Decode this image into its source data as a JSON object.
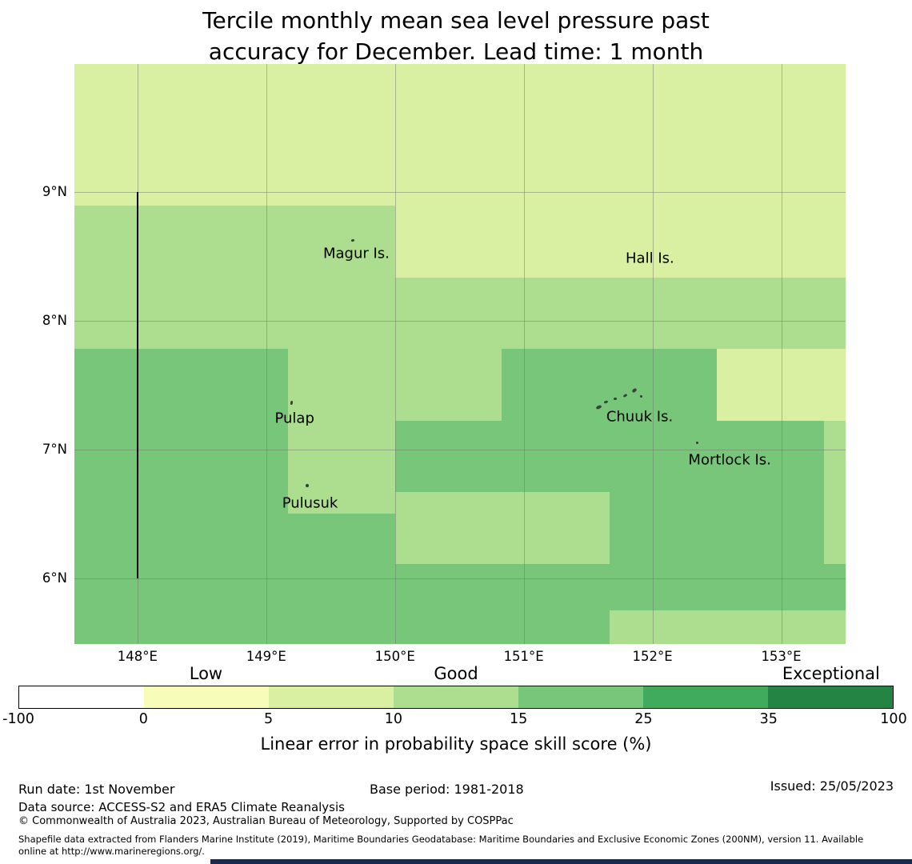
{
  "chart_data": {
    "type": "heatmap",
    "title": "Tercile monthly mean sea level pressure past\naccuracy for December. Lead time: 1 month",
    "projection": {
      "lon_min": 147.51,
      "lon_max": 153.5,
      "lat_min": 5.49,
      "lat_max": 9.99
    },
    "grid": true,
    "x_ticks": [
      {
        "value": 148,
        "label": "148°E"
      },
      {
        "value": 149,
        "label": "149°E"
      },
      {
        "value": 150,
        "label": "150°E"
      },
      {
        "value": 151,
        "label": "151°E"
      },
      {
        "value": 152,
        "label": "152°E"
      },
      {
        "value": 153,
        "label": "153°E"
      }
    ],
    "y_ticks": [
      {
        "value": 9,
        "label": "9°N"
      },
      {
        "value": 8,
        "label": "8°N"
      },
      {
        "value": 7,
        "label": "7°N"
      },
      {
        "value": 6,
        "label": "6°N"
      }
    ],
    "cells": [
      {
        "lon": [
          147.51,
          153.5
        ],
        "lat": [
          8.89,
          9.99
        ],
        "color": "#d9f0a3",
        "skill": "5-10%"
      },
      {
        "lon": [
          147.51,
          150.0
        ],
        "lat": [
          7.78,
          8.89
        ],
        "color": "#addd8e",
        "skill": "10-15%"
      },
      {
        "lon": [
          150.0,
          153.5
        ],
        "lat": [
          8.33,
          8.89
        ],
        "color": "#d9f0a3",
        "skill": "5-10%"
      },
      {
        "lon": [
          150.0,
          153.5
        ],
        "lat": [
          7.78,
          8.33
        ],
        "color": "#addd8e",
        "skill": "10-15%"
      },
      {
        "lon": [
          147.51,
          149.17
        ],
        "lat": [
          5.49,
          7.78
        ],
        "color": "#78c679",
        "skill": "15-25%"
      },
      {
        "lon": [
          149.17,
          150.0
        ],
        "lat": [
          6.5,
          7.78
        ],
        "color": "#addd8e",
        "skill": "10-15%"
      },
      {
        "lon": [
          149.17,
          150.0
        ],
        "lat": [
          5.49,
          6.5
        ],
        "color": "#78c679",
        "skill": "15-25%"
      },
      {
        "lon": [
          150.0,
          150.83
        ],
        "lat": [
          7.22,
          7.78
        ],
        "color": "#addd8e",
        "skill": "10-15%"
      },
      {
        "lon": [
          150.83,
          152.5
        ],
        "lat": [
          7.22,
          7.78
        ],
        "color": "#78c679",
        "skill": "15-25%"
      },
      {
        "lon": [
          152.5,
          153.5
        ],
        "lat": [
          7.22,
          7.78
        ],
        "color": "#d9f0a3",
        "skill": "5-10%"
      },
      {
        "lon": [
          150.0,
          153.33
        ],
        "lat": [
          6.67,
          7.22
        ],
        "color": "#78c679",
        "skill": "15-25%"
      },
      {
        "lon": [
          153.33,
          153.5
        ],
        "lat": [
          6.11,
          7.22
        ],
        "color": "#addd8e",
        "skill": "10-15%"
      },
      {
        "lon": [
          150.0,
          151.67
        ],
        "lat": [
          6.11,
          6.67
        ],
        "color": "#addd8e",
        "skill": "10-15%"
      },
      {
        "lon": [
          151.67,
          153.33
        ],
        "lat": [
          6.11,
          6.67
        ],
        "color": "#78c679",
        "skill": "15-25%"
      },
      {
        "lon": [
          150.0,
          153.5
        ],
        "lat": [
          5.49,
          6.11
        ],
        "color": "#78c679",
        "skill": "15-25%"
      },
      {
        "lon": [
          151.67,
          153.5
        ],
        "lat": [
          5.49,
          5.75
        ],
        "color": "#addd8e",
        "skill": "10-15%"
      }
    ],
    "boundary_line": {
      "lon": 148,
      "lat_from": 6,
      "lat_to": 9,
      "color": "#000000"
    },
    "islands": [
      {
        "name": "Magur Is.",
        "label_lon": 149.7,
        "label_lat": 8.52,
        "markers": [
          {
            "lon": 149.67,
            "lat": 8.62,
            "w": 4,
            "h": 3,
            "rot": -15
          }
        ]
      },
      {
        "name": "Hall Is.",
        "label_lon": 151.98,
        "label_lat": 8.48,
        "markers": []
      },
      {
        "name": "Pulap",
        "label_lon": 149.22,
        "label_lat": 7.24,
        "markers": [
          {
            "lon": 149.2,
            "lat": 7.36,
            "w": 3,
            "h": 5,
            "rot": 10
          }
        ]
      },
      {
        "name": "Chuuk Is.",
        "label_lon": 151.9,
        "label_lat": 7.25,
        "markers": [
          {
            "lon": 151.58,
            "lat": 7.33,
            "w": 7,
            "h": 4,
            "rot": -25
          },
          {
            "lon": 151.64,
            "lat": 7.37,
            "w": 5,
            "h": 3,
            "rot": -20
          },
          {
            "lon": 151.71,
            "lat": 7.39,
            "w": 4,
            "h": 3,
            "rot": 0
          },
          {
            "lon": 151.79,
            "lat": 7.42,
            "w": 5,
            "h": 3,
            "rot": -30
          },
          {
            "lon": 151.86,
            "lat": 7.46,
            "w": 6,
            "h": 4,
            "rot": -40
          },
          {
            "lon": 151.91,
            "lat": 7.41,
            "w": 3,
            "h": 3,
            "rot": 0
          }
        ]
      },
      {
        "name": "Mortlock Is.",
        "label_lon": 152.6,
        "label_lat": 6.92,
        "markers": [
          {
            "lon": 152.35,
            "lat": 7.05,
            "w": 3,
            "h": 3,
            "rot": 0
          }
        ]
      },
      {
        "name": "Pulusuk",
        "label_lon": 149.34,
        "label_lat": 6.58,
        "markers": [
          {
            "lon": 149.32,
            "lat": 6.72,
            "w": 4,
            "h": 4,
            "rot": 0
          }
        ]
      }
    ],
    "colorbar": {
      "caption": "Linear error in probability space skill score (%)",
      "ticks": [
        "-100",
        "0",
        "5",
        "10",
        "15",
        "25",
        "35",
        "100"
      ],
      "colors": [
        "#ffffff",
        "#f7fcb9",
        "#d9f0a3",
        "#addd8e",
        "#78c679",
        "#41ab5d",
        "#238443"
      ],
      "category_labels": [
        {
          "text": "Low",
          "segment": 1
        },
        {
          "text": "Good",
          "segment": 3
        },
        {
          "text": "Exceptional",
          "segment": 6
        }
      ]
    }
  },
  "footer": {
    "run_date": "Run date: 1st November",
    "base_period": "Base period: 1981-2018",
    "issued": "Issued: 25/05/2023",
    "data_source": "Data source: ACCESS-S2 and ERA5 Climate Reanalysis",
    "copyright": "© Commonwealth of Australia 2023, Australian Bureau of Meteorology, Supported by COSPPac",
    "shapefile_note": "Shapefile data extracted from Flanders Marine Institute (2019), Maritime Boundaries Geodatabase: Maritime Boundaries and Exclusive Economic Zones (200NM), version 11. Available\nonline at http://www.marineregions.org/."
  }
}
